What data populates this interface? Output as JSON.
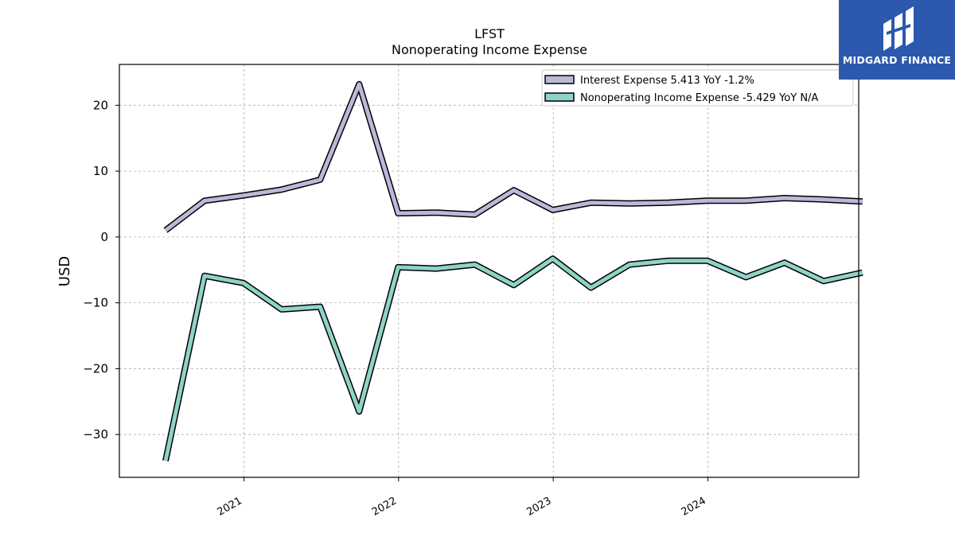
{
  "chart_data": {
    "type": "line",
    "title": "LFST",
    "subtitle": "Nonoperating Income Expense",
    "xlabel": "",
    "ylabel": "USD",
    "x_ticks": [
      "2021",
      "2022",
      "2023",
      "2024"
    ],
    "y_ticks": [
      "20",
      "10",
      "0",
      "−10",
      "−20",
      "−30"
    ],
    "ylim": [
      -36.5,
      26.2
    ],
    "xlim": [
      "2020-03-13",
      "2024-12-22"
    ],
    "grid": true,
    "legend_position": "top-right",
    "x": [
      "2020-06-30",
      "2020-09-30",
      "2020-12-31",
      "2021-03-31",
      "2021-06-30",
      "2021-09-30",
      "2021-12-31",
      "2022-03-31",
      "2022-06-30",
      "2022-09-30",
      "2022-12-31",
      "2023-03-31",
      "2023-06-30",
      "2023-09-30",
      "2023-12-31",
      "2024-03-31",
      "2024-06-30",
      "2024-09-30",
      "2024-12-31"
    ],
    "series": [
      {
        "name": "Interest Expense  5.413 YoY -1.2%",
        "color": "#bcb8d9",
        "values": [
          1.0,
          5.5,
          6.3,
          7.2,
          8.7,
          23.2,
          3.6,
          3.7,
          3.4,
          7.1,
          4.1,
          5.2,
          5.1,
          5.2,
          5.5,
          5.5,
          5.9,
          5.7,
          5.4
        ]
      },
      {
        "name": "Nonoperating Income Expense  -5.429 YoY N/A",
        "color": "#8ed4c6",
        "values": [
          -34.0,
          -5.9,
          -7.0,
          -11.0,
          -10.6,
          -26.5,
          -4.6,
          -4.8,
          -4.2,
          -7.3,
          -3.3,
          -7.7,
          -4.2,
          -3.6,
          -3.6,
          -6.1,
          -3.9,
          -6.7,
          -5.4
        ]
      }
    ]
  },
  "logo": {
    "text": "MIDGARD FINANCE"
  }
}
